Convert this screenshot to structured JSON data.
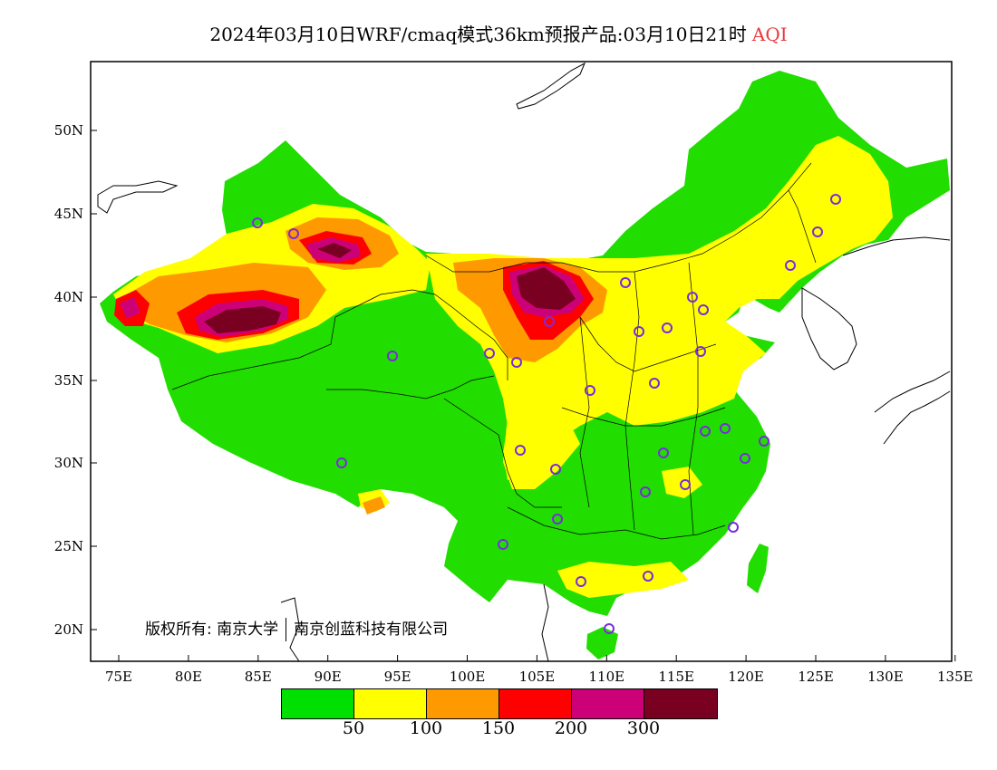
{
  "title": {
    "main": "2024年03月10日WRF/cmaq模式36km预报产品:03月10日21时",
    "variable": "AQI"
  },
  "copyright": {
    "prefix": "版权所有: 南京大学",
    "suffix": "南京创蓝科技有限公司"
  },
  "axes": {
    "lat_labels": [
      "50N",
      "45N",
      "40N",
      "35N",
      "30N",
      "25N",
      "20N"
    ],
    "lon_labels": [
      "75E",
      "80E",
      "85E",
      "90E",
      "95E",
      "100E",
      "105E",
      "110E",
      "115E",
      "120E",
      "125E",
      "130E",
      "135E"
    ]
  },
  "legend": {
    "colors": [
      "#00e000",
      "#ffff00",
      "#ff9900",
      "#ff0000",
      "#cc0077",
      "#7a0022"
    ],
    "labels": [
      "50",
      "100",
      "150",
      "200",
      "300"
    ]
  },
  "colors": {
    "good": "#22dd00",
    "moderate": "#ffff00",
    "sensitive": "#ff9900",
    "unhealthy": "#ff0000",
    "very_unhealthy": "#cc0077",
    "hazardous": "#7a0022",
    "station_marker": "#7a2be0"
  }
}
